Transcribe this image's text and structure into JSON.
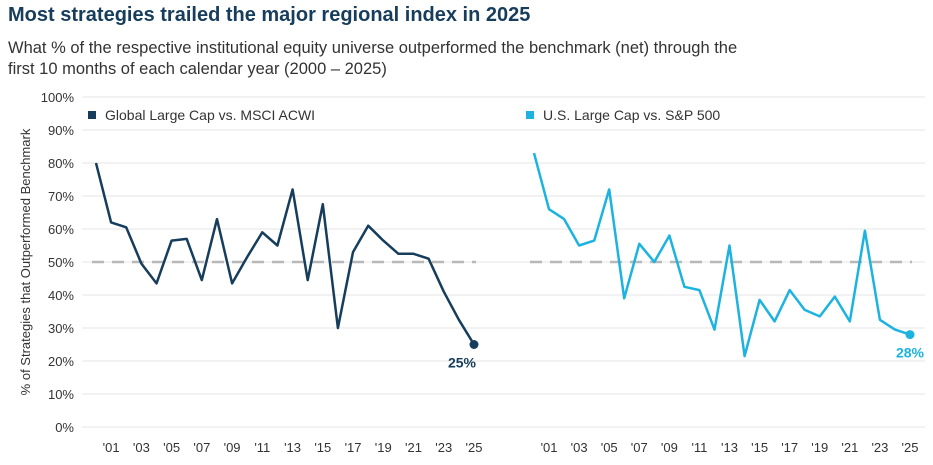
{
  "header": {
    "title": "Most strategies trailed the major regional index in 2025",
    "subtitle": "What % of the respective institutional equity universe outperformed the benchmark (net) through the first 10 months of each calendar year (2000 – 2025)"
  },
  "chart_data": {
    "type": "line",
    "ylabel": "% of Strategies that Outperformed Benchmark",
    "ylim": [
      0,
      100
    ],
    "y_ticks": [
      "0%",
      "10%",
      "20%",
      "30%",
      "40%",
      "50%",
      "60%",
      "70%",
      "80%",
      "90%",
      "100%"
    ],
    "x_tick_labels": [
      "'01",
      "'03",
      "'05",
      "'07",
      "'09",
      "'11",
      "'13",
      "'15",
      "'17",
      "'19",
      "'21",
      "'23",
      "'25"
    ],
    "x": [
      2000,
      2001,
      2002,
      2003,
      2004,
      2005,
      2006,
      2007,
      2008,
      2009,
      2010,
      2011,
      2012,
      2013,
      2014,
      2015,
      2016,
      2017,
      2018,
      2019,
      2020,
      2021,
      2022,
      2023,
      2024,
      2025
    ],
    "reference_line": 50,
    "grid": true,
    "legend_placement": "top-left of each panel",
    "panels": [
      {
        "name": "Global Large Cap vs. MSCI ACWI",
        "color": "#173d5c",
        "values": [
          80,
          62,
          60.5,
          49.5,
          43.5,
          56.5,
          57,
          44.5,
          63,
          43.5,
          51.5,
          59,
          55,
          72,
          44.5,
          67.5,
          30,
          53,
          61,
          56.5,
          52.5,
          52.5,
          51,
          41,
          32.5,
          25
        ],
        "end_label": "25%"
      },
      {
        "name": "U.S. Large Cap vs. S&P 500",
        "color": "#1cb3e0",
        "values": [
          83,
          66,
          63,
          55,
          56.5,
          72,
          39,
          55.5,
          50,
          58,
          42.5,
          41.5,
          29.5,
          55,
          21.5,
          38.5,
          32,
          41.5,
          35.5,
          33.5,
          39.5,
          32,
          59.5,
          32.5,
          29.5,
          28
        ],
        "end_label": "28%"
      }
    ]
  }
}
